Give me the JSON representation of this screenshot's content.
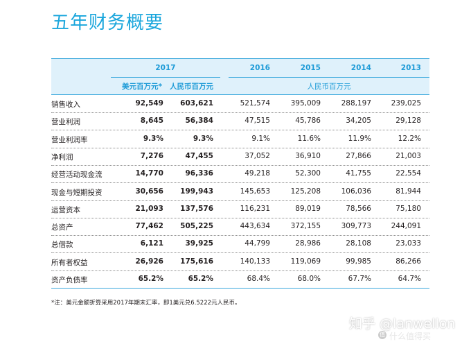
{
  "title": "五年财务概要",
  "header": {
    "year_2017": "2017",
    "years": [
      "2016",
      "2015",
      "2014",
      "2013"
    ],
    "usd_label": "美元百万元*",
    "rmb_label": "人民币百万元",
    "rmb_label_other": "人民币百万元"
  },
  "rows": [
    {
      "label": "销售收入",
      "v": [
        "92,549",
        "603,621",
        "521,574",
        "395,009",
        "288,197",
        "239,025"
      ]
    },
    {
      "label": "营业利润",
      "v": [
        "8,645",
        "56,384",
        "47,515",
        "45,786",
        "34,205",
        "29,128"
      ]
    },
    {
      "label": "营业利润率",
      "v": [
        "9.3%",
        "9.3%",
        "9.1%",
        "11.6%",
        "11.9%",
        "12.2%"
      ]
    },
    {
      "label": "净利润",
      "v": [
        "7,276",
        "47,455",
        "37,052",
        "36,910",
        "27,866",
        "21,003"
      ]
    },
    {
      "label": "经营活动现金流",
      "v": [
        "14,770",
        "96,336",
        "49,218",
        "52,300",
        "41,755",
        "22,554"
      ]
    },
    {
      "label": "现金与短期投资",
      "v": [
        "30,656",
        "199,943",
        "145,653",
        "125,208",
        "106,036",
        "81,944"
      ]
    },
    {
      "label": "运营资本",
      "v": [
        "21,093",
        "137,576",
        "116,231",
        "89,019",
        "78,566",
        "75,180"
      ]
    },
    {
      "label": "总资产",
      "v": [
        "77,462",
        "505,225",
        "443,634",
        "372,155",
        "309,773",
        "244,091"
      ]
    },
    {
      "label": "总借款",
      "v": [
        "6,121",
        "39,925",
        "44,799",
        "28,986",
        "28,108",
        "23,033"
      ]
    },
    {
      "label": "所有者权益",
      "v": [
        "26,926",
        "175,616",
        "140,133",
        "119,069",
        "99,985",
        "86,266"
      ]
    },
    {
      "label": "资产负债率",
      "v": [
        "65.2%",
        "65.2%",
        "68.4%",
        "68.0%",
        "67.7%",
        "64.7%"
      ]
    }
  ],
  "note": "*注：美元金额折算采用2017年期末汇率，即1美元兑6.5222元人民币。",
  "watermark": {
    "main": "知乎 @lanwellon",
    "sub": "什么值得买",
    "badge": "值"
  },
  "colors": {
    "accent": "#1aa6dc",
    "header_bg": "#dff1fb",
    "rule": "#3aa8dc"
  }
}
